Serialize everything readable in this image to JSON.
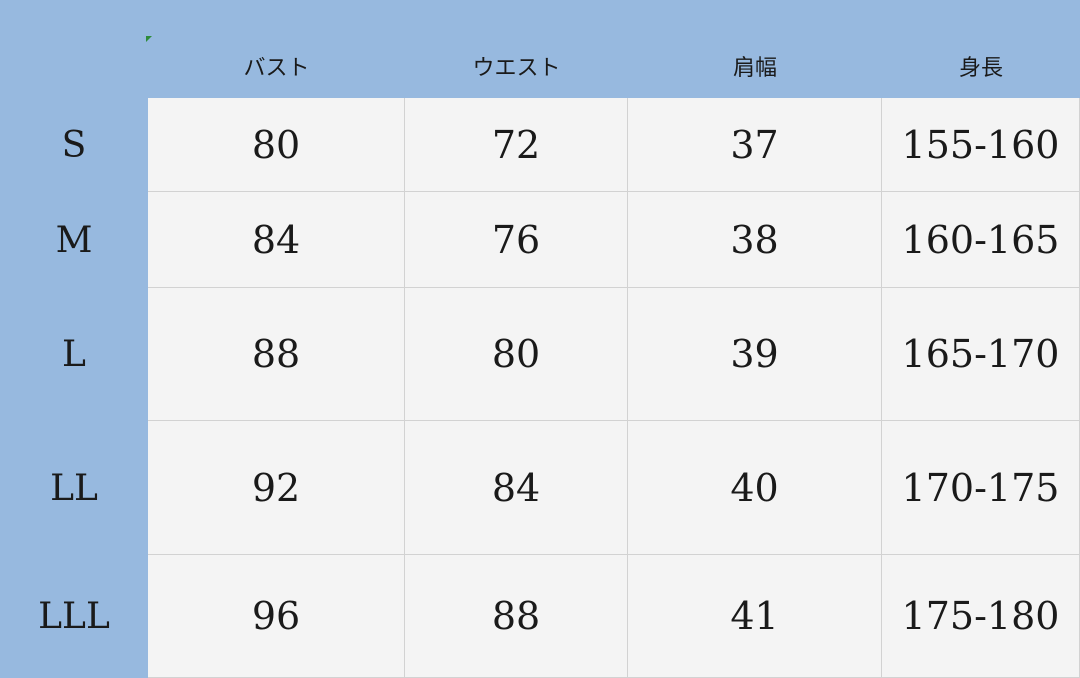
{
  "table": {
    "columns": [
      "バスト",
      "ウエスト",
      "肩幅",
      "身長"
    ],
    "rows": [
      {
        "label": "S",
        "cells": [
          80,
          72,
          37,
          "155-160"
        ]
      },
      {
        "label": "M",
        "cells": [
          84,
          76,
          38,
          "160-165"
        ]
      },
      {
        "label": "L",
        "cells": [
          88,
          80,
          39,
          "165-170"
        ]
      },
      {
        "label": "LL",
        "cells": [
          92,
          84,
          40,
          "170-175"
        ]
      },
      {
        "label": "LLL",
        "cells": [
          96,
          88,
          41,
          "175-180"
        ]
      }
    ]
  }
}
